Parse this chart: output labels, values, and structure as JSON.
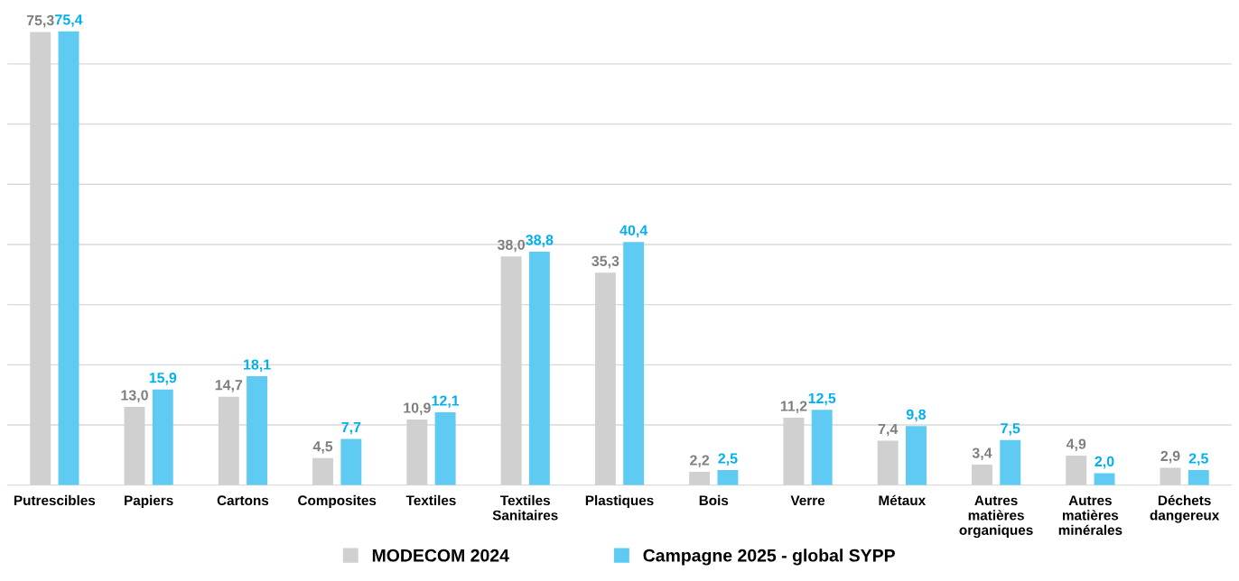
{
  "chart_data": {
    "type": "bar",
    "categories": [
      "Putrescibles",
      "Papiers",
      "Cartons",
      "Composites",
      "Textiles",
      "Textiles\nSanitaires",
      "Plastiques",
      "Bois",
      "Verre",
      "Métaux",
      "Autres\nmatières\norganiques",
      "Autres\nmatières\nminérales",
      "Déchets\ndangereux"
    ],
    "series": [
      {
        "name": "MODECOM 2024",
        "color": "#d0d0d0",
        "values": [
          75.3,
          13.0,
          14.7,
          4.5,
          10.9,
          38.0,
          35.3,
          2.2,
          11.2,
          7.4,
          3.4,
          4.9,
          2.9
        ],
        "value_labels": [
          "75,3",
          "13,0",
          "14,7",
          "4,5",
          "10,9",
          "38,0",
          "35,3",
          "2,2",
          "11,2",
          "7,4",
          "3,4",
          "4,9",
          "2,9"
        ]
      },
      {
        "name": "Campagne 2025 - global SYPP",
        "color": "#5fcbf3",
        "values": [
          75.4,
          15.9,
          18.1,
          7.7,
          12.1,
          38.8,
          40.4,
          2.5,
          12.5,
          9.8,
          7.5,
          2.0,
          2.5
        ],
        "value_labels": [
          "75,4",
          "15,9",
          "18,1",
          "7,7",
          "12,1",
          "38,8",
          "40,4",
          "2,5",
          "12,5",
          "9,8",
          "7,5",
          "2,0",
          "2,5"
        ]
      }
    ],
    "grid": "y",
    "tick_labels": "x",
    "legend": "bottom"
  }
}
